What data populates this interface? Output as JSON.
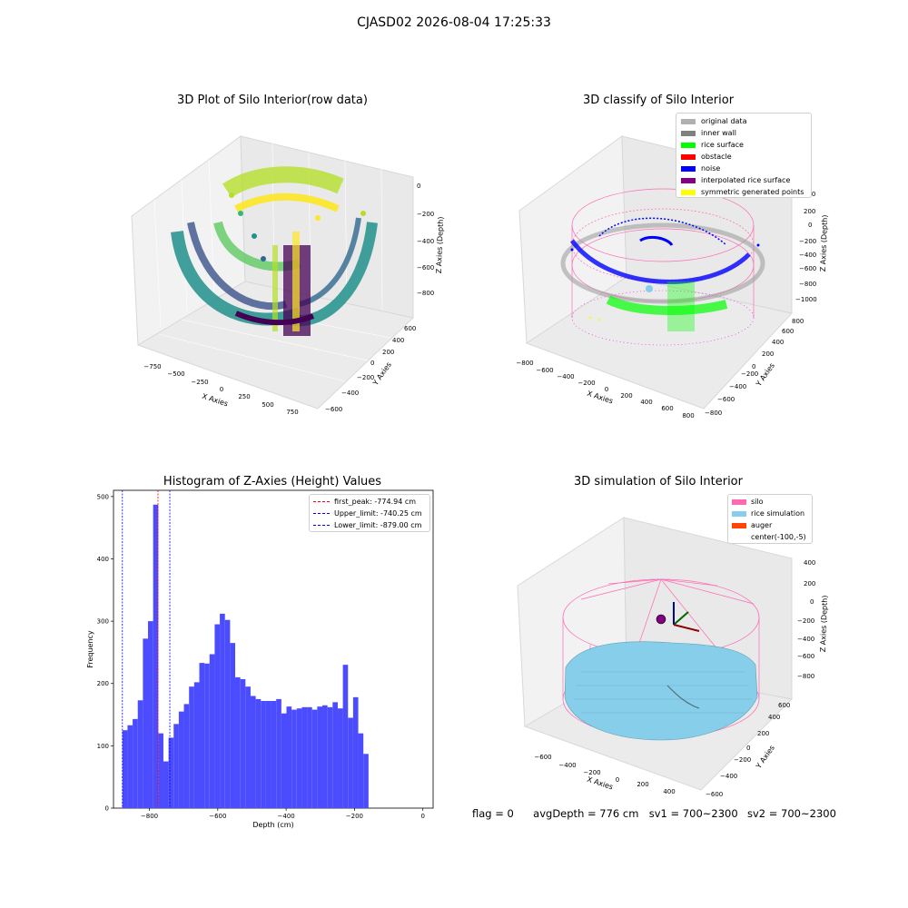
{
  "figure": {
    "suptitle": "CJASD02 2026-08-04 17:25:33",
    "footer": {
      "flag": "flag = 0",
      "avg_depth": "avgDepth = 776 cm",
      "sv1": "sv1 = 700~2300",
      "sv2": "sv2 = 700~2300"
    }
  },
  "colors": {
    "hist_bar": "#4c4cff",
    "first_peak": "#ff0000",
    "limits": "#0000ff",
    "silo": "#ff69b4",
    "rice": "#87ceeb",
    "auger": "#ff4500"
  },
  "chart_data": [
    {
      "type": "scatter",
      "title": "3D Plot of Silo Interior(row data)",
      "xlabel": "X Axies",
      "ylabel": "Y Axies",
      "zlabel": "Z Axies (Depth)",
      "x_ticks": [
        "−750",
        "−500",
        "−250",
        "0",
        "250",
        "500",
        "750"
      ],
      "y_ticks": [
        "−600",
        "−400",
        "−200",
        "0",
        "200",
        "400",
        "600"
      ],
      "z_ticks": [
        "−800",
        "−600",
        "−400",
        "−200",
        "0"
      ],
      "colormap": "viridis"
    },
    {
      "type": "scatter",
      "title": "3D classify of Silo Interior",
      "xlabel": "X Axies",
      "ylabel": "Y Axies",
      "zlabel": "Z Axies (Depth)",
      "x_ticks": [
        "−800",
        "−600",
        "−400",
        "−200",
        "0",
        "200",
        "400",
        "600",
        "800"
      ],
      "y_ticks": [
        "−800",
        "−600",
        "−400",
        "−200",
        "0",
        "200",
        "400",
        "600",
        "800"
      ],
      "z_ticks": [
        "−1000",
        "−800",
        "−600",
        "−400",
        "−200",
        "0",
        "200",
        "400"
      ],
      "legend": [
        {
          "label": "original data",
          "color": "#b0b0b0"
        },
        {
          "label": "inner wall",
          "color": "#808080"
        },
        {
          "label": "rice surface",
          "color": "#00ff00"
        },
        {
          "label": "obstacle",
          "color": "#ff0000"
        },
        {
          "label": "noise",
          "color": "#0000ff"
        },
        {
          "label": "interpolated rice surface",
          "color": "#800080"
        },
        {
          "label": "symmetric generated points",
          "color": "#ffff00"
        }
      ]
    },
    {
      "type": "bar",
      "title": "Histogram of Z-Axies (Height) Values",
      "xlabel": "Depth (cm)",
      "ylabel": "Frequency",
      "xlim": [
        -905,
        30
      ],
      "ylim": [
        0,
        510
      ],
      "x_ticks": [
        -800,
        -600,
        -400,
        -200,
        0
      ],
      "x_tick_labels": [
        "−800",
        "−600",
        "−400",
        "−200",
        "0"
      ],
      "y_ticks": [
        0,
        100,
        200,
        300,
        400,
        500
      ],
      "bin_start": -879,
      "bin_width": 15,
      "values": [
        125,
        133,
        143,
        173,
        272,
        300,
        487,
        120,
        75,
        113,
        135,
        155,
        167,
        195,
        202,
        233,
        232,
        247,
        295,
        312,
        302,
        265,
        210,
        207,
        195,
        180,
        175,
        172,
        172,
        172,
        175,
        152,
        163,
        158,
        160,
        162,
        162,
        158,
        163,
        165,
        162,
        170,
        160,
        230,
        145,
        178,
        120,
        87
      ],
      "vlines": [
        {
          "label": "first_peak: -774.94 cm",
          "x": -774.94,
          "color": "#ff0000"
        },
        {
          "label": "Upper_limit: -740.25 cm",
          "x": -740.25,
          "color": "#0000ff"
        },
        {
          "label": "Lower_limit: -879.00 cm",
          "x": -879.0,
          "color": "#0000ff"
        }
      ]
    },
    {
      "type": "scatter",
      "title": "3D simulation of Silo Interior",
      "xlabel": "X Axies",
      "ylabel": "Y Axies",
      "zlabel": "Z Axies (Depth)",
      "x_ticks": [
        "−600",
        "−400",
        "−200",
        "0",
        "200",
        "400"
      ],
      "y_ticks": [
        "−600",
        "−400",
        "−200",
        "0",
        "200",
        "400",
        "600"
      ],
      "z_ticks": [
        "−800",
        "−600",
        "−400",
        "−200",
        "0",
        "200",
        "400"
      ],
      "legend": [
        {
          "label": "silo",
          "color": "#ff69b4"
        },
        {
          "label": "rice simulation",
          "color": "#87ceeb"
        },
        {
          "label": "auger",
          "color": "#ff4500"
        },
        {
          "label": "center(-100,-5)",
          "color": ""
        }
      ]
    }
  ]
}
